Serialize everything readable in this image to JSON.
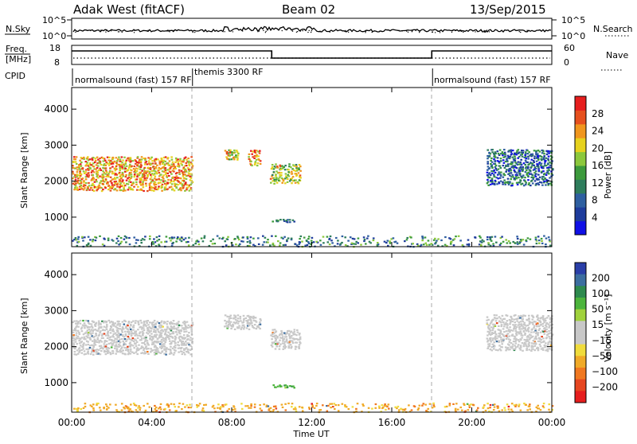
{
  "header": {
    "station": "Adak West (fitACF)",
    "beam": "Beam 02",
    "date": "13/Sep/2015"
  },
  "panels": {
    "nsky_label": "N.Sky",
    "nsky_ticks": [
      "10^5",
      "10^0"
    ],
    "nsearch_label": "N.Search",
    "nsearch_ticks": [
      "10^5",
      "10^0"
    ],
    "freq_label_1": "Freq.",
    "freq_label_2": "[MHz]",
    "freq_ticks": [
      "18",
      "8"
    ],
    "nave_label": "Nave",
    "nave_ticks": [
      "60",
      "0"
    ],
    "cpid_label": "CPID",
    "cpid_segments": [
      {
        "name": "normalsound (fast) 157 RF",
        "start_h": 0,
        "end_h": 6
      },
      {
        "name": "themis 3300 RF",
        "start_h": 6,
        "end_h": 18
      },
      {
        "name": "normalsound (fast) 157 RF",
        "start_h": 18,
        "end_h": 24
      }
    ]
  },
  "axes": {
    "xlabel": "Time UT",
    "ylabel": "Slant Range [km]",
    "x_ticks": [
      "00:00",
      "04:00",
      "08:00",
      "12:00",
      "16:00",
      "20:00",
      "00:00"
    ],
    "y_ticks": [
      "1000",
      "2000",
      "3000",
      "4000"
    ]
  },
  "power_bar": {
    "label": "Power [dB]",
    "ticks": [
      "4",
      "8",
      "12",
      "16",
      "20",
      "24",
      "28"
    ],
    "colors": [
      "#1010e6",
      "#1e3c9c",
      "#2e5fa0",
      "#2e7d5c",
      "#3c9a3c",
      "#8cc83c",
      "#e6d21e",
      "#f0961e",
      "#e6501e",
      "#e61e1e"
    ]
  },
  "velocity_bar": {
    "label": "Velocity [m s⁻¹]",
    "ticks": [
      "200",
      "100",
      "50",
      "15",
      "−15",
      "−50",
      "−100",
      "−200"
    ],
    "colors": [
      "#2a3fa8",
      "#3c6ea0",
      "#2e8a4e",
      "#4cb43c",
      "#a0d23c",
      "#c8c8c8",
      "#c8c8c8",
      "#f0dc3c",
      "#f0aa28",
      "#f07820",
      "#e64620",
      "#e61e1e"
    ]
  },
  "chart_data": {
    "type": "heatmap",
    "title": "Adak West (fitACF) Beam 02 13/Sep/2015",
    "xlabel": "Time UT",
    "ylabel": "Slant Range [km]",
    "xlim_hours": [
      0,
      24
    ],
    "ylim_km": [
      180,
      4600
    ],
    "frequency_mhz": [
      {
        "start_h": 0,
        "end_h": 10,
        "value": 15.5
      },
      {
        "start_h": 10,
        "end_h": 18,
        "value": 11.0
      },
      {
        "start_h": 18,
        "end_h": 24,
        "value": 15.5
      }
    ],
    "power_echo_regions": [
      {
        "t0": 0.0,
        "t1": 6.0,
        "r0": 1750,
        "r1": 2700,
        "power_db": 22
      },
      {
        "t0": 7.6,
        "t1": 8.3,
        "r0": 2600,
        "r1": 2900,
        "power_db": 20
      },
      {
        "t0": 8.8,
        "t1": 9.4,
        "r0": 2450,
        "r1": 2900,
        "power_db": 22
      },
      {
        "t0": 9.9,
        "t1": 11.4,
        "r0": 1950,
        "r1": 2500,
        "power_db": 18
      },
      {
        "t0": 10.0,
        "t1": 11.1,
        "r0": 880,
        "r1": 960,
        "power_db": 10
      },
      {
        "t0": 20.7,
        "t1": 24.0,
        "r0": 1900,
        "r1": 2900,
        "power_db": 8
      },
      {
        "t0": 0.0,
        "t1": 24.0,
        "r0": 200,
        "r1": 500,
        "power_db": 10
      }
    ],
    "velocity_echo_regions": [
      {
        "t0": 0.0,
        "t1": 6.0,
        "r0": 1800,
        "r1": 2750,
        "velocity_ms": 0
      },
      {
        "t0": 7.6,
        "t1": 9.4,
        "r0": 2500,
        "r1": 2900,
        "velocity_ms": 0
      },
      {
        "t0": 9.9,
        "t1": 11.4,
        "r0": 1950,
        "r1": 2500,
        "velocity_ms": 0
      },
      {
        "t0": 10.0,
        "t1": 11.1,
        "r0": 880,
        "r1": 960,
        "velocity_ms": 40
      },
      {
        "t0": 20.7,
        "t1": 24.0,
        "r0": 1900,
        "r1": 2900,
        "velocity_ms": 0
      },
      {
        "t0": 0.0,
        "t1": 24.0,
        "r0": 200,
        "r1": 450,
        "velocity_ms": -40
      }
    ]
  }
}
